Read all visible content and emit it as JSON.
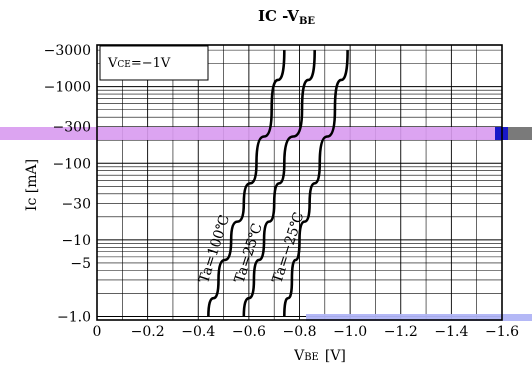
{
  "chart_data": {
    "type": "line",
    "title": "IC -V",
    "title_sub": "BE",
    "xlabel_main": "V",
    "xlabel_sub": "BE",
    "xlabel_unit": "[V]",
    "ylabel": "Ic [mA]",
    "condition_label": "V",
    "condition_sub": "CE",
    "condition_value": "=−1V",
    "x_scale": "linear",
    "y_scale": "log",
    "xlim": [
      0,
      -1.6
    ],
    "ylim": [
      -1,
      -3000
    ],
    "grid": true,
    "x_ticks": [
      {
        "value": 0,
        "label": "0"
      },
      {
        "value": -0.2,
        "label": "−0.2"
      },
      {
        "value": -0.4,
        "label": "−0.4"
      },
      {
        "value": -0.6,
        "label": "−0.6"
      },
      {
        "value": -0.8,
        "label": "−0.8"
      },
      {
        "value": -1.0,
        "label": "−1.0"
      },
      {
        "value": -1.2,
        "label": "−1.2"
      },
      {
        "value": -1.4,
        "label": "−1.4"
      },
      {
        "value": -1.6,
        "label": "−1.6"
      }
    ],
    "y_ticks": [
      {
        "value": -1.0,
        "label": "−1.0"
      },
      {
        "value": -5,
        "label": "−5"
      },
      {
        "value": -10,
        "label": "−10"
      },
      {
        "value": -30,
        "label": "−30"
      },
      {
        "value": -100,
        "label": "−100"
      },
      {
        "value": -300,
        "label": "−300"
      },
      {
        "value": -1000,
        "label": "−1000"
      },
      {
        "value": -3000,
        "label": "−3000"
      }
    ],
    "series": [
      {
        "name": "Ta=100℃",
        "x": [
          -0.44,
          -0.48,
          -0.53,
          -0.58,
          -0.63,
          -0.69,
          -0.74
        ],
        "y": [
          -1,
          -3,
          -10,
          -30,
          -100,
          -500,
          -3000
        ]
      },
      {
        "name": "Ta=25℃",
        "x": [
          -0.58,
          -0.62,
          -0.66,
          -0.7,
          -0.74,
          -0.81,
          -0.86
        ],
        "y": [
          -1,
          -3,
          -10,
          -30,
          -100,
          -500,
          -3000
        ]
      },
      {
        "name": "Ta=−25℃",
        "x": [
          -0.74,
          -0.77,
          -0.8,
          -0.84,
          -0.88,
          -0.94,
          -0.99
        ],
        "y": [
          -1,
          -3,
          -10,
          -30,
          -100,
          -500,
          -3000
        ]
      }
    ]
  }
}
